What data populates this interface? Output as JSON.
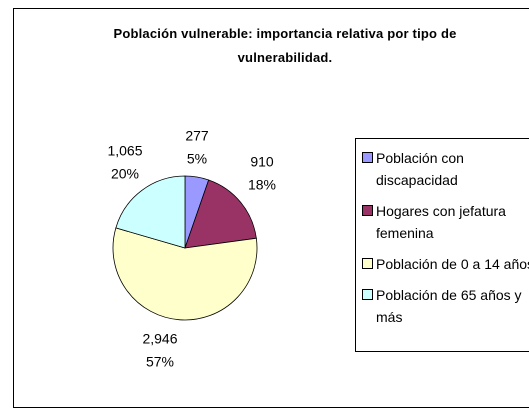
{
  "chart_data": {
    "type": "pie",
    "title": "Población vulnerable: importancia relativa por tipo de vulnerabilidad.",
    "series": [
      {
        "name": "Población con discapacidad",
        "color": "#9999ff",
        "value": 277,
        "value_label": "277",
        "percent": 5,
        "percent_label": "5%"
      },
      {
        "name": "Hogares con jefatura femenina",
        "color": "#993366",
        "value": 910,
        "value_label": "910",
        "percent": 18,
        "percent_label": "18%"
      },
      {
        "name": "Población de 0 a 14 años",
        "color": "#ffffcc",
        "value": 2946,
        "value_label": "2,946",
        "percent": 57,
        "percent_label": "57%"
      },
      {
        "name": "Población de 65 años y más",
        "color": "#ccffff",
        "value": 1065,
        "value_label": "1,065",
        "percent": 20,
        "percent_label": "20%"
      }
    ],
    "legend": "right"
  }
}
